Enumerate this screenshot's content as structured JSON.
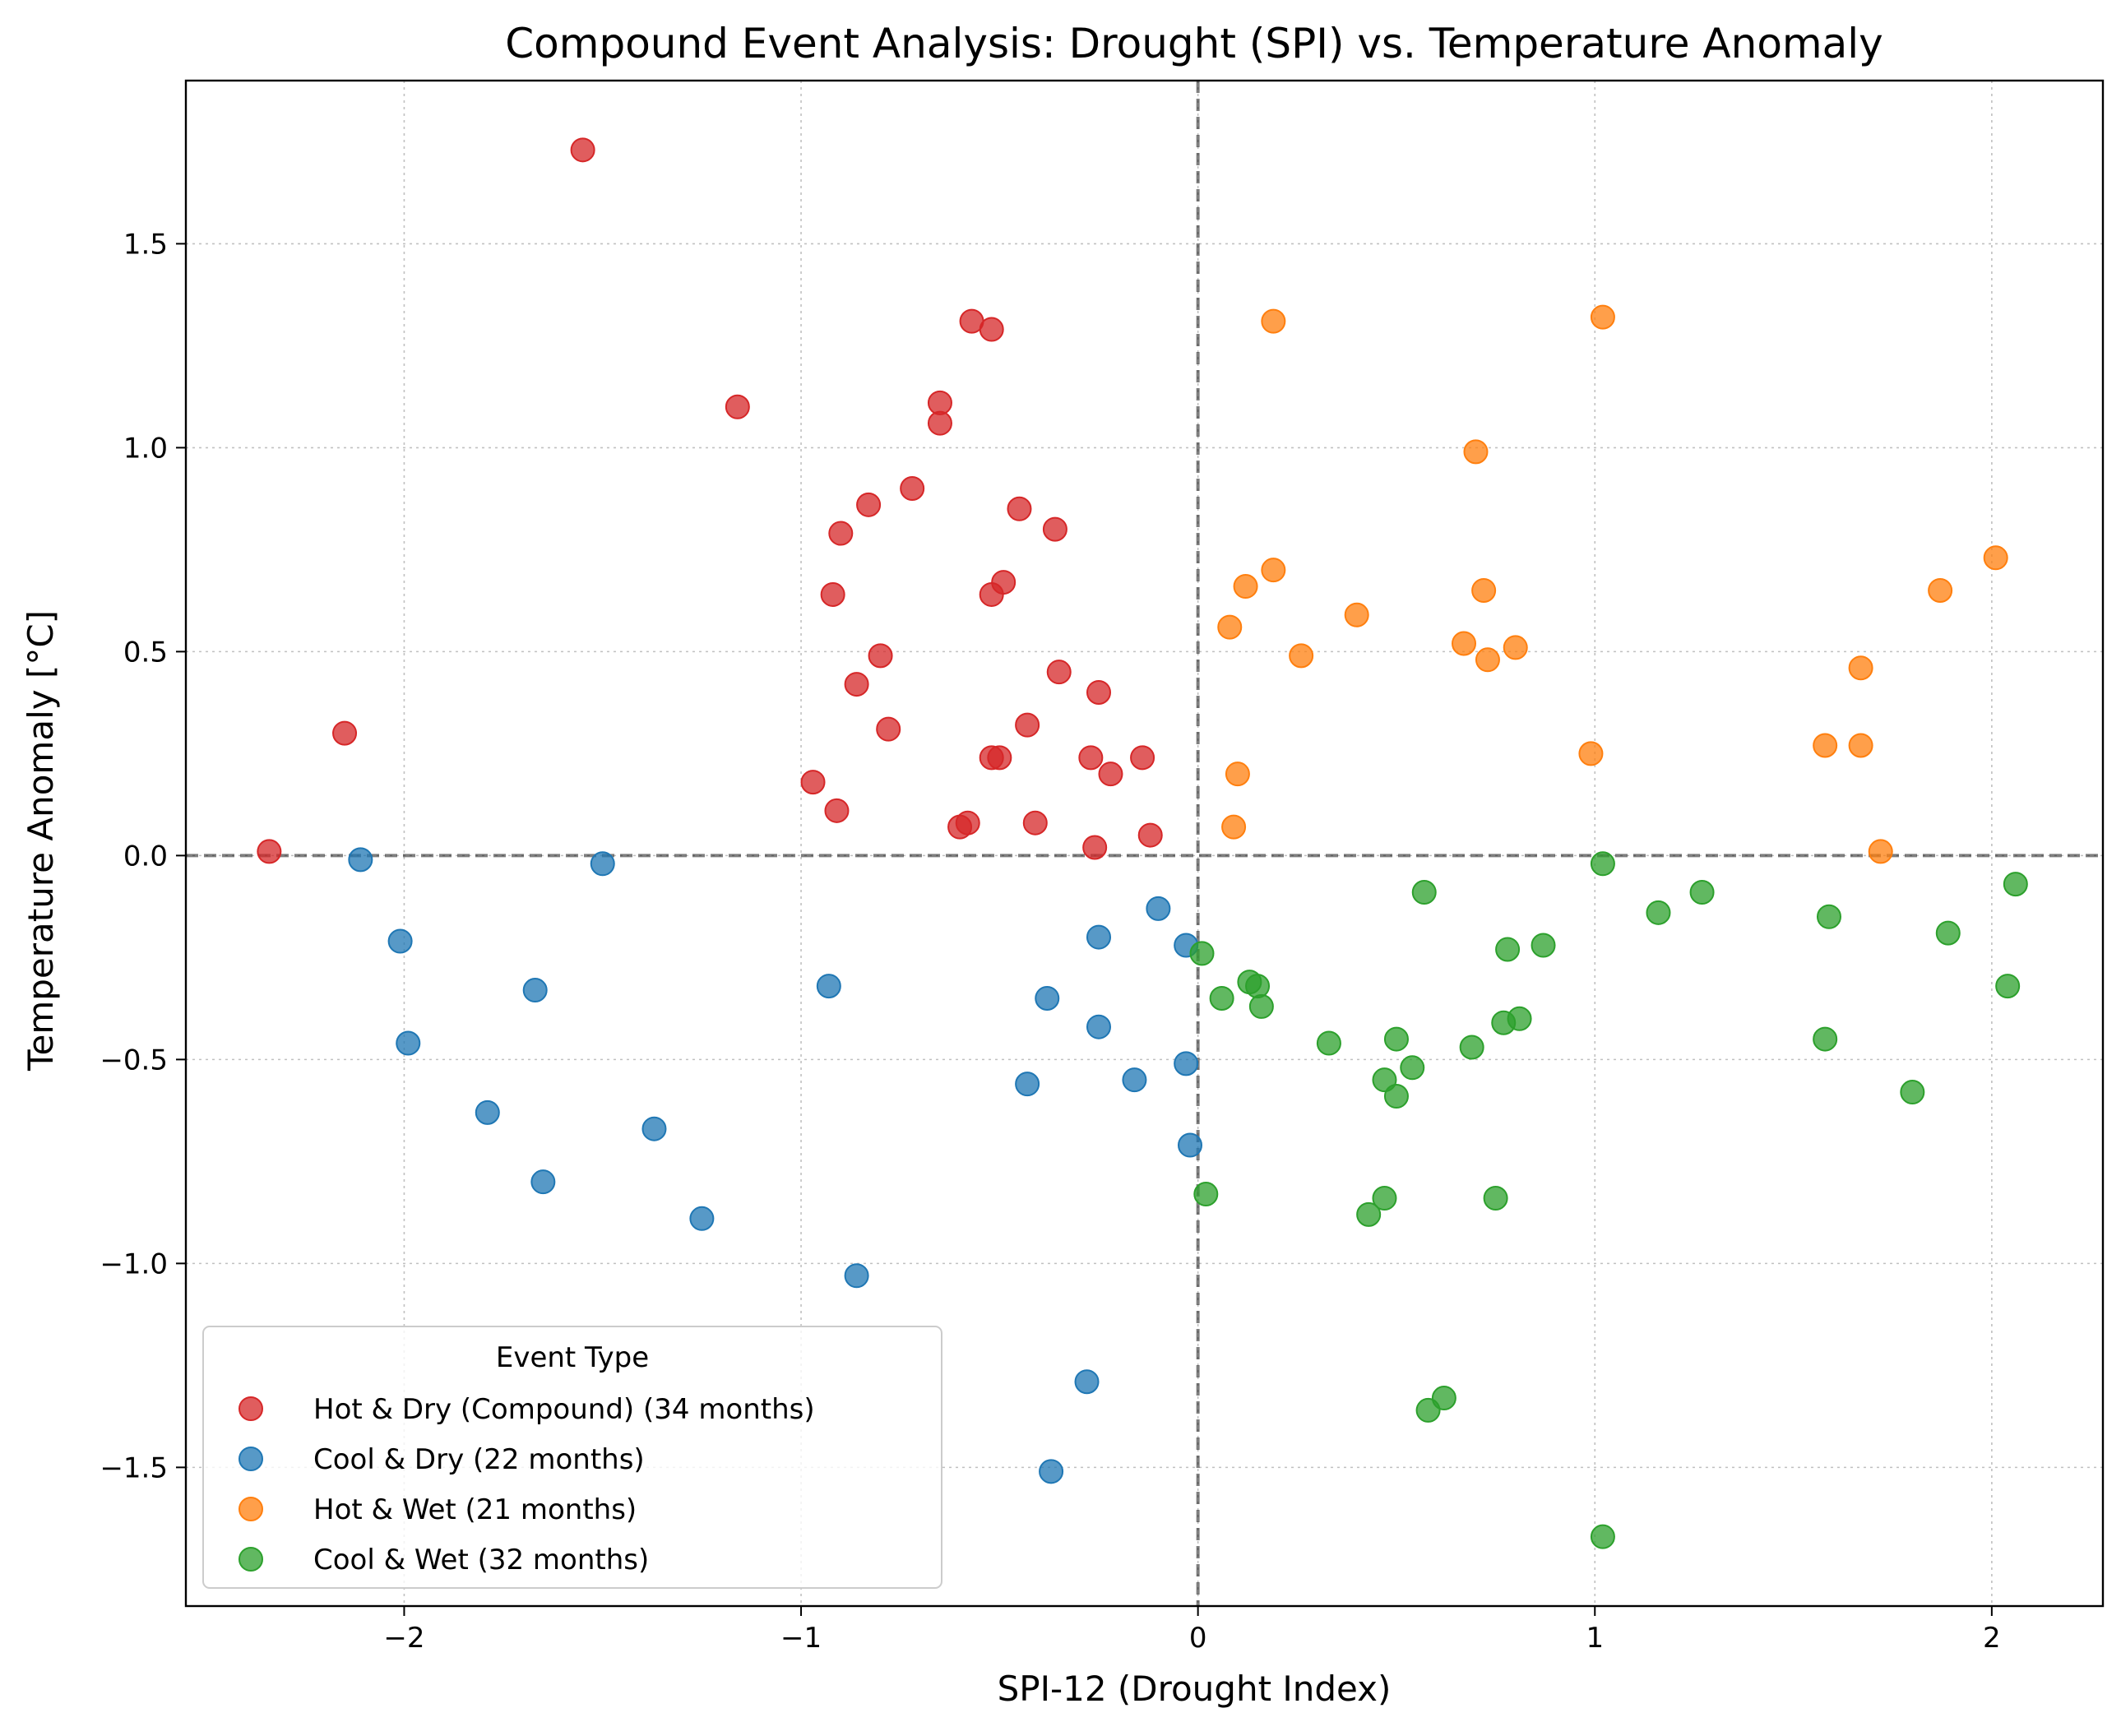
{
  "chart_data": {
    "type": "scatter",
    "title": "Compound Event Analysis: Drought (SPI) vs. Temperature Anomaly",
    "xlabel": "SPI-12 (Drought Index)",
    "ylabel": "Temperature Anomaly [°C]",
    "xlim": [
      -2.55,
      2.28
    ],
    "ylim": [
      -1.84,
      1.9
    ],
    "xticks": [
      -2,
      -1,
      0,
      1,
      2
    ],
    "xtick_labels": [
      "−2",
      "−1",
      "0",
      "1",
      "2"
    ],
    "yticks": [
      -1.5,
      -1.0,
      -0.5,
      0.0,
      0.5,
      1.0,
      1.5
    ],
    "ytick_labels": [
      "−1.5",
      "−1.0",
      "−0.5",
      "0.0",
      "0.5",
      "1.0",
      "1.5"
    ],
    "grid": true,
    "reference_lines": {
      "x": 0,
      "y": 0
    },
    "legend": {
      "title": "Event Type",
      "placement": "lower-left"
    },
    "series": [
      {
        "name": "Hot & Dry (Compound) (34 months)",
        "color": "#d62728",
        "points": [
          [
            -2.34,
            0.01
          ],
          [
            -2.15,
            0.3
          ],
          [
            -1.55,
            1.73
          ],
          [
            -1.16,
            1.1
          ],
          [
            -0.97,
            0.18
          ],
          [
            -0.92,
            0.64
          ],
          [
            -0.91,
            0.11
          ],
          [
            -0.9,
            0.79
          ],
          [
            -0.86,
            0.42
          ],
          [
            -0.83,
            0.86
          ],
          [
            -0.8,
            0.49
          ],
          [
            -0.78,
            0.31
          ],
          [
            -0.72,
            0.9
          ],
          [
            -0.65,
            1.11
          ],
          [
            -0.65,
            1.06
          ],
          [
            -0.6,
            0.07
          ],
          [
            -0.58,
            0.08
          ],
          [
            -0.57,
            1.31
          ],
          [
            -0.52,
            1.29
          ],
          [
            -0.52,
            0.64
          ],
          [
            -0.52,
            0.24
          ],
          [
            -0.5,
            0.24
          ],
          [
            -0.49,
            0.67
          ],
          [
            -0.45,
            0.85
          ],
          [
            -0.43,
            0.32
          ],
          [
            -0.41,
            0.08
          ],
          [
            -0.36,
            0.8
          ],
          [
            -0.35,
            0.45
          ],
          [
            -0.27,
            0.24
          ],
          [
            -0.26,
            0.02
          ],
          [
            -0.25,
            0.4
          ],
          [
            -0.22,
            0.2
          ],
          [
            -0.14,
            0.24
          ],
          [
            -0.12,
            0.05
          ]
        ]
      },
      {
        "name": "Cool & Dry (22 months)",
        "color": "#1f77b4",
        "points": [
          [
            -2.11,
            -0.01
          ],
          [
            -2.01,
            -0.21
          ],
          [
            -1.99,
            -0.46
          ],
          [
            -1.79,
            -0.63
          ],
          [
            -1.67,
            -0.33
          ],
          [
            -1.65,
            -0.8
          ],
          [
            -1.5,
            -0.02
          ],
          [
            -1.37,
            -0.67
          ],
          [
            -1.25,
            -0.89
          ],
          [
            -0.93,
            -0.32
          ],
          [
            -0.86,
            -1.03
          ],
          [
            -0.43,
            -0.56
          ],
          [
            -0.38,
            -0.35
          ],
          [
            -0.37,
            -1.51
          ],
          [
            -0.28,
            -1.29
          ],
          [
            -0.25,
            -0.2
          ],
          [
            -0.25,
            -0.42
          ],
          [
            -0.16,
            -0.55
          ],
          [
            -0.1,
            -0.13
          ],
          [
            -0.03,
            -0.22
          ],
          [
            -0.03,
            -0.51
          ],
          [
            -0.02,
            -0.71
          ]
        ]
      },
      {
        "name": "Hot & Wet (21 months)",
        "color": "#ff7f0e",
        "points": [
          [
            0.08,
            0.56
          ],
          [
            0.09,
            0.07
          ],
          [
            0.1,
            0.2
          ],
          [
            0.12,
            0.66
          ],
          [
            0.19,
            0.7
          ],
          [
            0.19,
            1.31
          ],
          [
            0.26,
            0.49
          ],
          [
            0.4,
            0.59
          ],
          [
            0.67,
            0.52
          ],
          [
            0.7,
            0.99
          ],
          [
            0.72,
            0.65
          ],
          [
            0.73,
            0.48
          ],
          [
            0.8,
            0.51
          ],
          [
            0.99,
            0.25
          ],
          [
            1.02,
            1.32
          ],
          [
            1.58,
            0.27
          ],
          [
            1.67,
            0.46
          ],
          [
            1.67,
            0.27
          ],
          [
            1.72,
            0.01
          ],
          [
            1.87,
            0.65
          ],
          [
            2.01,
            0.73
          ]
        ]
      },
      {
        "name": "Cool & Wet (32 months)",
        "color": "#2ca02c",
        "points": [
          [
            0.01,
            -0.24
          ],
          [
            0.02,
            -0.83
          ],
          [
            0.06,
            -0.35
          ],
          [
            0.13,
            -0.31
          ],
          [
            0.15,
            -0.32
          ],
          [
            0.16,
            -0.37
          ],
          [
            0.33,
            -0.46
          ],
          [
            0.43,
            -0.88
          ],
          [
            0.47,
            -0.55
          ],
          [
            0.47,
            -0.84
          ],
          [
            0.5,
            -0.45
          ],
          [
            0.5,
            -0.59
          ],
          [
            0.54,
            -0.52
          ],
          [
            0.57,
            -0.09
          ],
          [
            0.58,
            -1.36
          ],
          [
            0.62,
            -1.33
          ],
          [
            0.69,
            -0.47
          ],
          [
            0.75,
            -0.84
          ],
          [
            0.77,
            -0.41
          ],
          [
            0.78,
            -0.23
          ],
          [
            0.81,
            -0.4
          ],
          [
            0.87,
            -0.22
          ],
          [
            1.02,
            -0.02
          ],
          [
            1.02,
            -1.67
          ],
          [
            1.16,
            -0.14
          ],
          [
            1.27,
            -0.09
          ],
          [
            1.58,
            -0.45
          ],
          [
            1.59,
            -0.15
          ],
          [
            1.8,
            -0.58
          ],
          [
            1.89,
            -0.19
          ],
          [
            2.04,
            -0.32
          ],
          [
            2.06,
            -0.07
          ]
        ]
      }
    ]
  }
}
